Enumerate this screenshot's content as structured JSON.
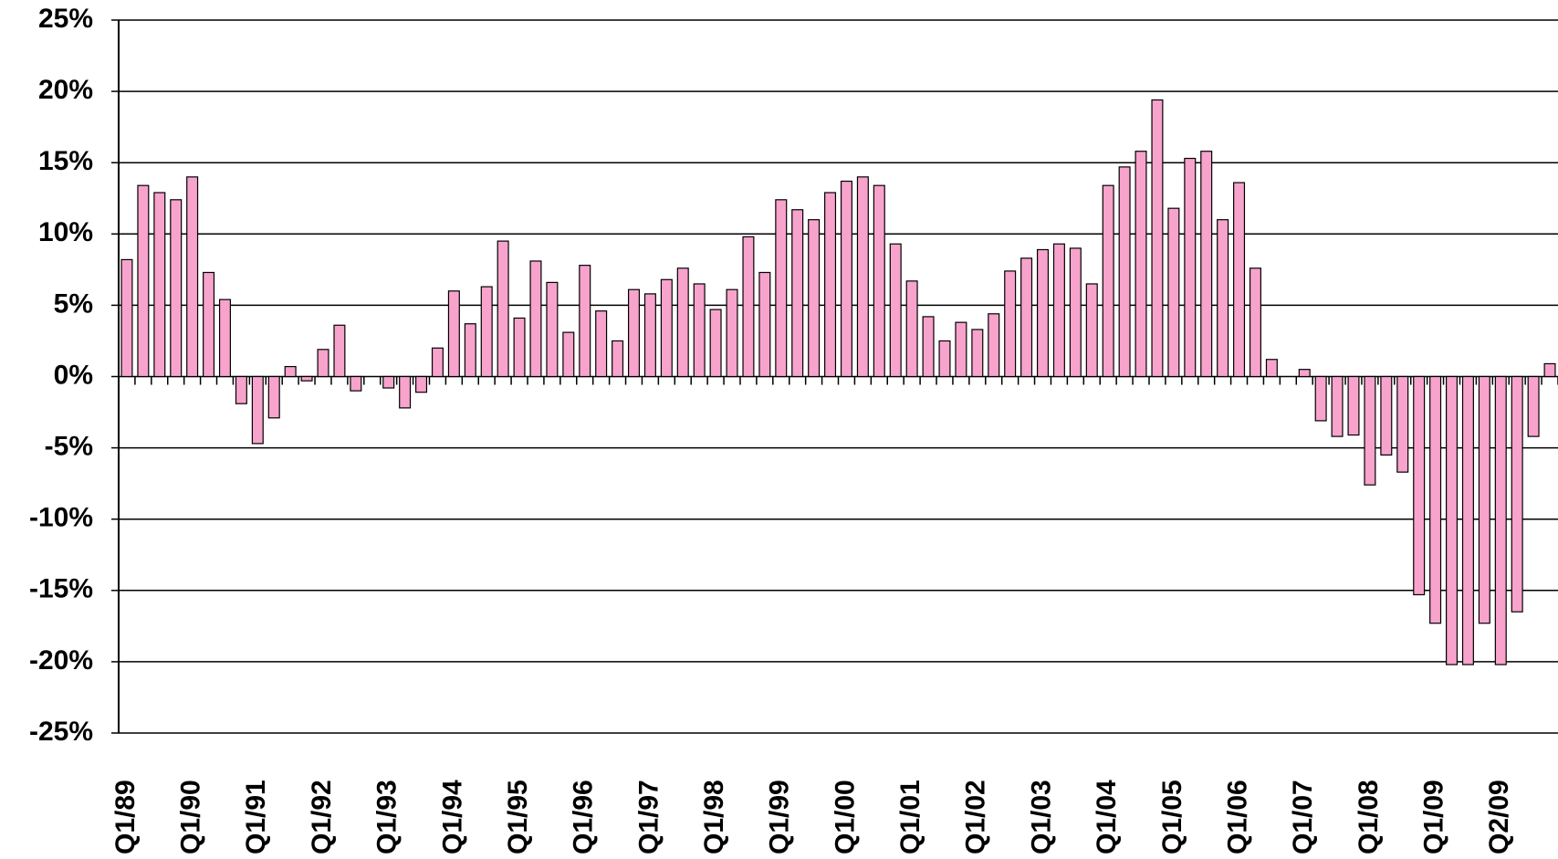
{
  "chart_data": {
    "type": "bar",
    "categories": [
      "Q1/89",
      null,
      null,
      null,
      "Q1/90",
      null,
      null,
      null,
      "Q1/91",
      null,
      null,
      null,
      "Q1/92",
      null,
      null,
      null,
      "Q1/93",
      null,
      null,
      null,
      "Q1/94",
      null,
      null,
      null,
      "Q1/95",
      null,
      null,
      null,
      "Q1/96",
      null,
      null,
      null,
      "Q1/97",
      null,
      null,
      null,
      "Q1/98",
      null,
      null,
      null,
      "Q1/99",
      null,
      null,
      null,
      "Q1/00",
      null,
      null,
      null,
      "Q1/01",
      null,
      null,
      null,
      "Q1/02",
      null,
      null,
      null,
      "Q1/03",
      null,
      null,
      null,
      "Q1/04",
      null,
      null,
      null,
      "Q1/05",
      null,
      null,
      null,
      "Q1/06",
      null,
      null,
      null,
      "Q1/07",
      null,
      null,
      null,
      "Q1/08",
      null,
      null,
      null,
      "Q1/09",
      null,
      null,
      null,
      "Q2/09",
      null,
      null,
      null
    ],
    "values": [
      8.2,
      13.4,
      12.9,
      12.4,
      14.0,
      7.3,
      5.4,
      -1.9,
      -4.7,
      -2.9,
      0.7,
      -0.3,
      1.9,
      3.6,
      -1.0,
      0,
      -0.8,
      -2.2,
      -1.1,
      2.0,
      6.0,
      3.7,
      6.3,
      9.5,
      4.1,
      8.1,
      6.6,
      3.1,
      7.8,
      4.6,
      2.5,
      6.1,
      5.8,
      6.8,
      7.6,
      6.5,
      4.7,
      6.1,
      9.8,
      7.3,
      12.4,
      11.7,
      11.0,
      12.9,
      13.7,
      14.0,
      13.4,
      9.3,
      6.7,
      4.2,
      2.5,
      3.8,
      3.3,
      4.4,
      7.4,
      8.3,
      8.9,
      9.3,
      9.0,
      6.5,
      13.4,
      14.7,
      15.8,
      19.4,
      11.8,
      15.3,
      15.8,
      11.0,
      13.6,
      7.6,
      1.2,
      0,
      0.5,
      -3.1,
      -4.2,
      -4.1,
      -7.6,
      -5.5,
      -6.7,
      -15.3,
      -17.3,
      -20.2,
      -20.2,
      -17.3,
      -20.2,
      -16.5,
      -4.2,
      0.9
    ],
    "color": "#f7a3cc",
    "ylim": [
      -25,
      25
    ],
    "yticks": [
      {
        "value": -25,
        "label": "-25%"
      },
      {
        "value": -20,
        "label": "-20%"
      },
      {
        "value": -15,
        "label": "-15%"
      },
      {
        "value": -10,
        "label": "-10%"
      },
      {
        "value": -5,
        "label": "-5%"
      },
      {
        "value": 0,
        "label": "0%"
      },
      {
        "value": 5,
        "label": "5%"
      },
      {
        "value": 10,
        "label": "10%"
      },
      {
        "value": 15,
        "label": "15%"
      },
      {
        "value": 20,
        "label": "20%"
      },
      {
        "value": 25,
        "label": "25%"
      }
    ],
    "grid": true
  }
}
